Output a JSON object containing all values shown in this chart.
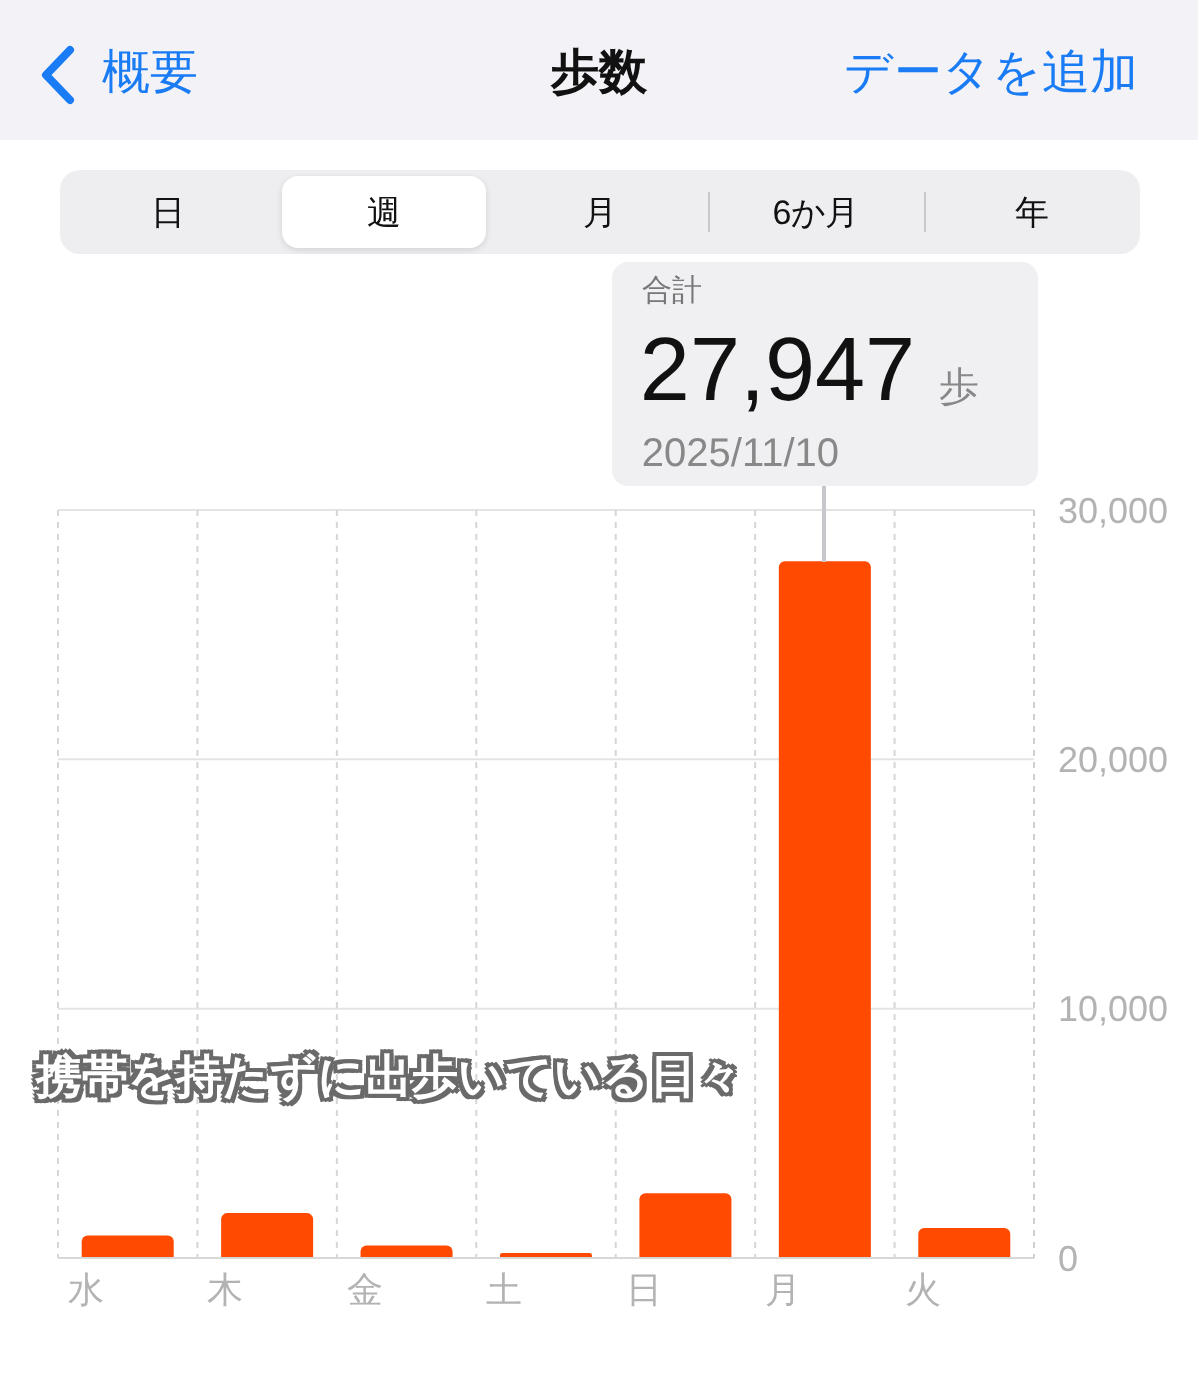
{
  "chart_data": {
    "type": "bar",
    "title": "歩数",
    "categories": [
      "水",
      "木",
      "金",
      "土",
      "日",
      "月",
      "火"
    ],
    "values": [
      900,
      1800,
      500,
      200,
      2600,
      27947,
      1200
    ],
    "color": "#ff4a00",
    "value_labels": [
      null,
      null,
      null,
      null,
      null,
      "27,947",
      null
    ],
    "ylim": [
      0,
      30000
    ],
    "yticks": [
      {
        "value": 0,
        "label": "0"
      },
      {
        "value": 10000,
        "label": "10,000"
      },
      {
        "value": 20000,
        "label": "20,000"
      },
      {
        "value": 30000,
        "label": "30,000"
      }
    ],
    "grid": true,
    "annotations": [
      "概要",
      "データを追加",
      "日",
      "週",
      "月",
      "6か月",
      "年",
      "合計",
      "歩",
      "2025/11/10",
      "携帯を持たずに出歩いている日々"
    ]
  }
}
